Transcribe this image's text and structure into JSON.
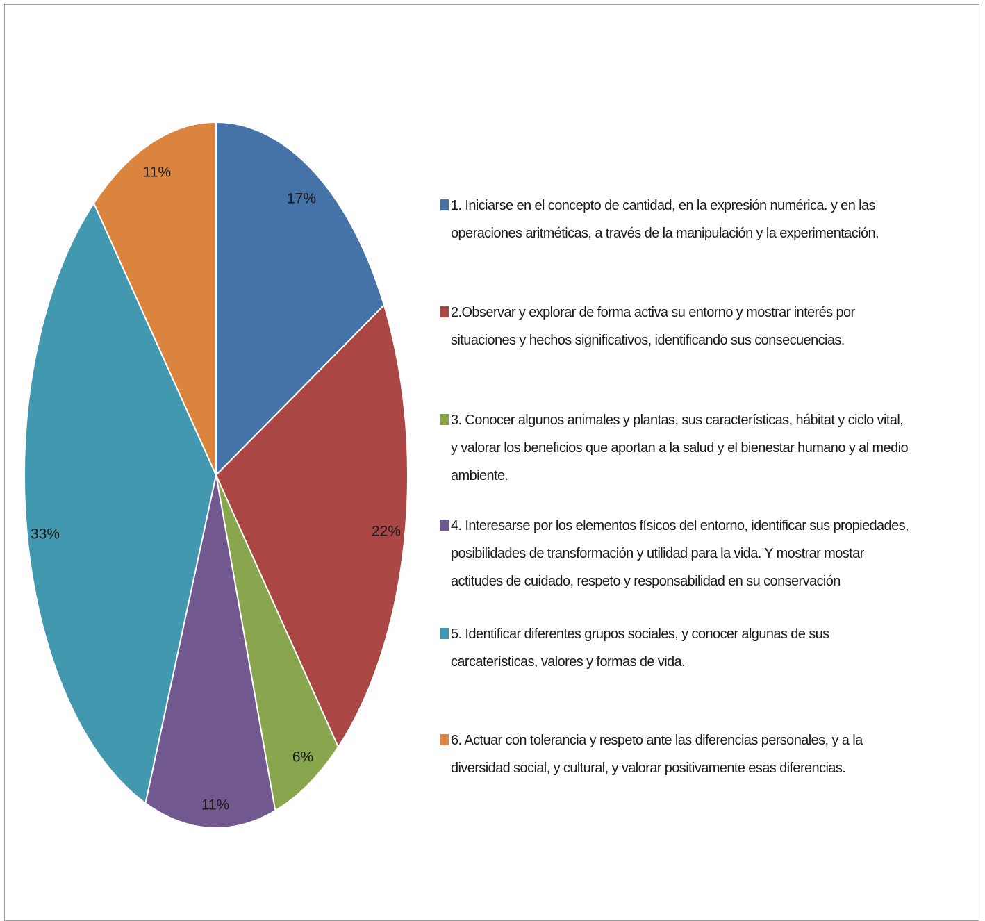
{
  "chart_data": {
    "type": "pie",
    "slices": [
      {
        "label": "17%",
        "value": 17,
        "color": "#4572A7",
        "legend": "1. Iniciarse en el concepto de cantidad, en la expresión numérica.  y en las operaciones aritméticas, a través de la manipulación y la experimentación."
      },
      {
        "label": "22%",
        "value": 22,
        "color": "#AA4643",
        "legend": "2.Observar y explorar de forma activa su entorno y mostrar interés por situaciones y hechos significativos, identificando sus consecuencias."
      },
      {
        "label": "6%",
        "value": 6,
        "color": "#89A54E",
        "legend": "3. Conocer algunos animales y plantas,  sus características, hábitat y ciclo vital, y valorar los beneficios que aportan a la salud y el bienestar humano y al  medio ambiente."
      },
      {
        "label": "11%",
        "value": 11,
        "color": "#71588F",
        "legend": "4. Interesarse por los elementos físicos del entorno, identificar sus propiedades, posibilidades de transformación  y utilidad para la vida. Y mostrar mostar  actitudes de cuidado, respeto y responsabilidad  en su conservación"
      },
      {
        "label": "33%",
        "value": 33,
        "color": "#4198AF",
        "legend": "5. Identificar diferentes grupos sociales, y conocer algunas de sus carcaterísticas, valores y formas de vida."
      },
      {
        "label": "11%",
        "value": 11,
        "color": "#DB843D",
        "legend": "6. Actuar con tolerancia y respeto ante las diferencias personales, y a la diversidad social, y cultural, y valorar positivamente esas diferencias."
      }
    ],
    "legend_position": "right",
    "start_angle": "12 o'clock",
    "direction": "clockwise"
  }
}
